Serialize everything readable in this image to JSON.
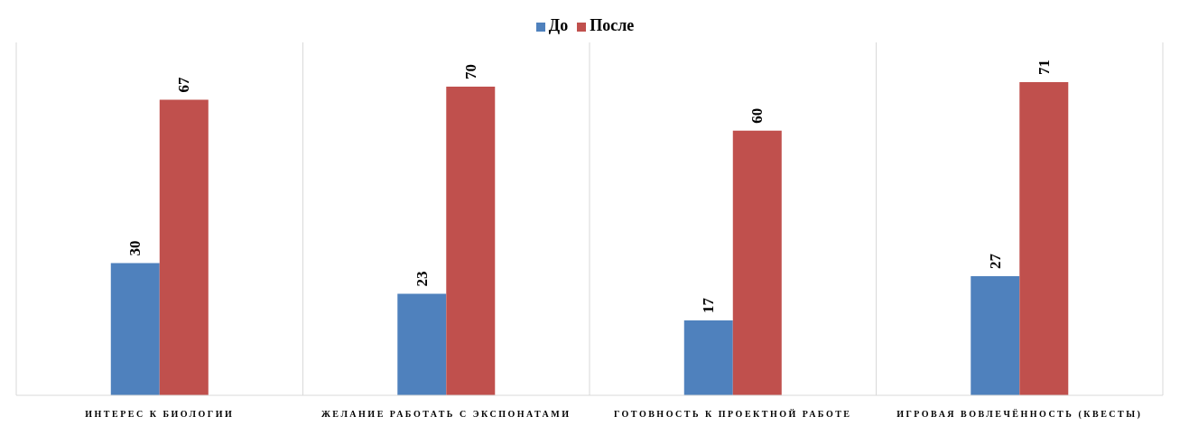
{
  "chart_data": {
    "type": "bar",
    "categories": [
      "ИНТЕРЕС К БИОЛОГИИ",
      "ЖЕЛАНИЕ РАБОТАТЬ С ЭКСПОНАТАМИ",
      "ГОТОВНОСТЬ К ПРОЕКТНОЙ РАБОТЕ",
      "ИГРОВАЯ ВОВЛЕЧЁННОСТЬ (КВЕСТЫ)"
    ],
    "series": [
      {
        "name": "До",
        "color": "#4f81bd",
        "values": [
          30,
          23,
          17,
          27
        ]
      },
      {
        "name": "После",
        "color": "#c0504d",
        "values": [
          67,
          70,
          60,
          71
        ]
      }
    ],
    "ylim": [
      0,
      80
    ],
    "data_labels": true,
    "legend": "top",
    "grid": "x"
  }
}
